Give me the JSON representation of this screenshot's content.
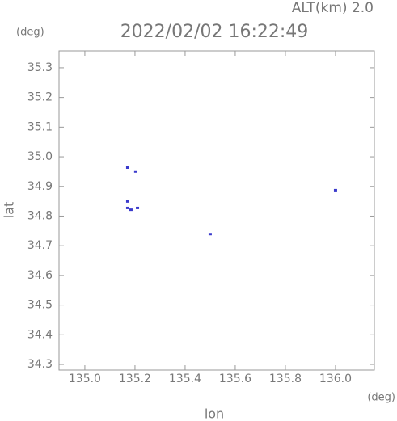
{
  "chart_data": {
    "type": "scatter",
    "title": "2022/02/02 16:22:49",
    "subtitle": "ALT(km) 2.0",
    "y_unit": "(deg)",
    "x_unit": "(deg)",
    "xlabel": "lon",
    "ylabel": "lat",
    "xlim": [
      134.897,
      136.155
    ],
    "ylim": [
      34.281,
      35.357
    ],
    "xticks": [
      {
        "value": 135.0,
        "label": "135.0"
      },
      135.2,
      135.4,
      135.6,
      135.8,
      {
        "value": 136.0,
        "label": "136.0"
      }
    ],
    "yticks": [
      34.3,
      34.4,
      34.5,
      34.6,
      34.7,
      34.8,
      34.9,
      {
        "value": 35.0,
        "label": "35.0"
      },
      35.1,
      35.2,
      35.3
    ],
    "series": [
      {
        "color": "#3a3acc",
        "x": [
          135.171,
          135.203,
          135.171,
          135.171,
          135.184,
          135.21,
          136.0,
          135.5
        ],
        "values": [
          34.962,
          34.949,
          34.848,
          34.826,
          34.82,
          34.826,
          34.886,
          34.738
        ]
      }
    ]
  }
}
